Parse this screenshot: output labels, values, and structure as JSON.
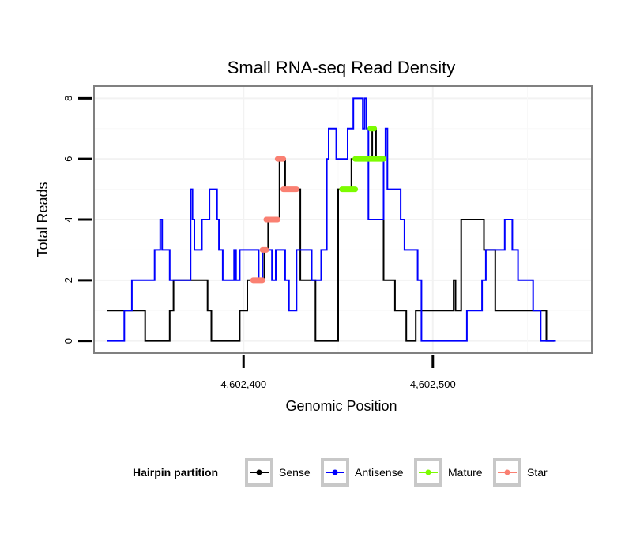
{
  "chart_data": {
    "type": "line",
    "title": "Small RNA-seq Read Density",
    "xlabel": "Genomic Position",
    "ylabel": "Total Reads",
    "xlim": [
      4602321,
      4602584
    ],
    "ylim": [
      -0.4,
      8.4
    ],
    "x_ticks": [
      4602400,
      4602500
    ],
    "x_tick_labels": [
      "4,602,400",
      "4,602,500"
    ],
    "y_ticks": [
      0,
      2,
      4,
      6,
      8
    ],
    "y_tick_labels": [
      "0",
      "2",
      "4",
      "6",
      "8"
    ],
    "legend": {
      "title": "Hairpin partition",
      "position": "bottom",
      "entries": [
        {
          "label": "Sense",
          "color": "#000000"
        },
        {
          "label": "Antisense",
          "color": "#0000ff"
        },
        {
          "label": "Mature",
          "color": "#7cfc00"
        },
        {
          "label": "Star",
          "color": "#fa8072"
        }
      ]
    },
    "series": [
      {
        "name": "Sense",
        "color": "#000000",
        "points": [
          [
            4602328,
            1
          ],
          [
            4602348,
            1
          ],
          [
            4602348,
            0
          ],
          [
            4602361,
            0
          ],
          [
            4602361,
            1
          ],
          [
            4602363,
            1
          ],
          [
            4602363,
            2
          ],
          [
            4602381,
            2
          ],
          [
            4602381,
            1
          ],
          [
            4602383,
            1
          ],
          [
            4602383,
            0
          ],
          [
            4602398,
            0
          ],
          [
            4602398,
            1
          ],
          [
            4602402,
            1
          ],
          [
            4602402,
            2
          ],
          [
            4602411,
            2
          ],
          [
            4602411,
            3
          ],
          [
            4602413,
            3
          ],
          [
            4602413,
            4
          ],
          [
            4602419,
            4
          ],
          [
            4602419,
            6
          ],
          [
            4602422,
            6
          ],
          [
            4602422,
            5
          ],
          [
            4602430,
            5
          ],
          [
            4602430,
            2
          ],
          [
            4602438,
            2
          ],
          [
            4602438,
            0
          ],
          [
            4602450,
            0
          ],
          [
            4602450,
            5
          ],
          [
            4602457,
            5
          ],
          [
            4602457,
            6
          ],
          [
            4602468,
            6
          ],
          [
            4602468,
            7
          ],
          [
            4602470,
            7
          ],
          [
            4602470,
            6
          ],
          [
            4602474,
            6
          ],
          [
            4602474,
            2
          ],
          [
            4602480,
            2
          ],
          [
            4602480,
            1
          ],
          [
            4602486,
            1
          ],
          [
            4602486,
            0
          ],
          [
            4602491,
            0
          ],
          [
            4602491,
            1
          ],
          [
            4602511,
            1
          ],
          [
            4602511,
            2
          ],
          [
            4602512,
            2
          ],
          [
            4602512,
            1
          ],
          [
            4602515,
            1
          ],
          [
            4602515,
            4
          ],
          [
            4602527,
            4
          ],
          [
            4602527,
            3
          ],
          [
            4602533,
            3
          ],
          [
            4602533,
            1
          ],
          [
            4602560,
            1
          ],
          [
            4602560,
            0
          ],
          [
            4602564,
            0
          ]
        ]
      },
      {
        "name": "Antisense",
        "color": "#0000ff",
        "points": [
          [
            4602328,
            0
          ],
          [
            4602337,
            0
          ],
          [
            4602337,
            1
          ],
          [
            4602341,
            1
          ],
          [
            4602341,
            2
          ],
          [
            4602353,
            2
          ],
          [
            4602353,
            3
          ],
          [
            4602356,
            3
          ],
          [
            4602356,
            4
          ],
          [
            4602357,
            4
          ],
          [
            4602357,
            3
          ],
          [
            4602361,
            3
          ],
          [
            4602361,
            2
          ],
          [
            4602372,
            2
          ],
          [
            4602372,
            5
          ],
          [
            4602373,
            5
          ],
          [
            4602373,
            4
          ],
          [
            4602374,
            4
          ],
          [
            4602374,
            3
          ],
          [
            4602378,
            3
          ],
          [
            4602378,
            4
          ],
          [
            4602382,
            4
          ],
          [
            4602382,
            5
          ],
          [
            4602386,
            5
          ],
          [
            4602386,
            4
          ],
          [
            4602387,
            4
          ],
          [
            4602387,
            3
          ],
          [
            4602389,
            3
          ],
          [
            4602389,
            2
          ],
          [
            4602395,
            2
          ],
          [
            4602395,
            3
          ],
          [
            4602396,
            3
          ],
          [
            4602396,
            2
          ],
          [
            4602398,
            2
          ],
          [
            4602398,
            3
          ],
          [
            4602408,
            3
          ],
          [
            4602408,
            2
          ],
          [
            4602410,
            2
          ],
          [
            4602410,
            3
          ],
          [
            4602415,
            3
          ],
          [
            4602415,
            2
          ],
          [
            4602417,
            2
          ],
          [
            4602417,
            3
          ],
          [
            4602422,
            3
          ],
          [
            4602422,
            2
          ],
          [
            4602424,
            2
          ],
          [
            4602424,
            1
          ],
          [
            4602428,
            1
          ],
          [
            4602428,
            3
          ],
          [
            4602436,
            3
          ],
          [
            4602436,
            2
          ],
          [
            4602441,
            2
          ],
          [
            4602441,
            3
          ],
          [
            4602444,
            3
          ],
          [
            4602444,
            6
          ],
          [
            4602445,
            6
          ],
          [
            4602445,
            7
          ],
          [
            4602449,
            7
          ],
          [
            4602449,
            6
          ],
          [
            4602455,
            6
          ],
          [
            4602455,
            7
          ],
          [
            4602458,
            7
          ],
          [
            4602458,
            8
          ],
          [
            4602463,
            8
          ],
          [
            4602463,
            7
          ],
          [
            4602464,
            7
          ],
          [
            4602464,
            8
          ],
          [
            4602465,
            8
          ],
          [
            4602465,
            7
          ],
          [
            4602466,
            7
          ],
          [
            4602466,
            4
          ],
          [
            4602474,
            4
          ],
          [
            4602474,
            6
          ],
          [
            4602475,
            6
          ],
          [
            4602475,
            7
          ],
          [
            4602476,
            7
          ],
          [
            4602476,
            5
          ],
          [
            4602483,
            5
          ],
          [
            4602483,
            4
          ],
          [
            4602485,
            4
          ],
          [
            4602485,
            3
          ],
          [
            4602492,
            3
          ],
          [
            4602492,
            2
          ],
          [
            4602494,
            2
          ],
          [
            4602494,
            0
          ],
          [
            4602518,
            0
          ],
          [
            4602518,
            1
          ],
          [
            4602526,
            1
          ],
          [
            4602526,
            2
          ],
          [
            4602528,
            2
          ],
          [
            4602528,
            3
          ],
          [
            4602538,
            3
          ],
          [
            4602538,
            4
          ],
          [
            4602542,
            4
          ],
          [
            4602542,
            3
          ],
          [
            4602545,
            3
          ],
          [
            4602545,
            2
          ],
          [
            4602553,
            2
          ],
          [
            4602553,
            1
          ],
          [
            4602557,
            1
          ],
          [
            4602557,
            0
          ],
          [
            4602565,
            0
          ]
        ]
      }
    ],
    "highlight_series": [
      {
        "name": "Mature",
        "color": "#7cfc00",
        "segments": [
          [
            4602452,
            4602459,
            5
          ],
          [
            4602459,
            4602474,
            6
          ],
          [
            4602467,
            4602469,
            7
          ]
        ]
      },
      {
        "name": "Star",
        "color": "#fa8072",
        "segments": [
          [
            4602405,
            4602410,
            2
          ],
          [
            4602410,
            4602412,
            3
          ],
          [
            4602412,
            4602418,
            4
          ],
          [
            4602418,
            4602421,
            6
          ],
          [
            4602421,
            4602428,
            5
          ]
        ]
      }
    ]
  }
}
